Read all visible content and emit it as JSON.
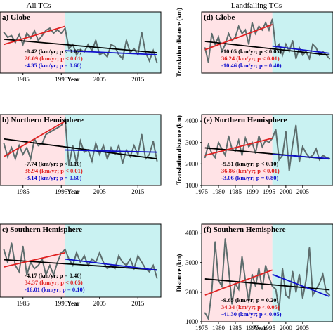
{
  "column_titles": [
    "All TCs",
    "Landfalling TCs"
  ],
  "colors": {
    "pre_region": "#ffe3e6",
    "post_region": "#c9f2f2",
    "series": "#5d6d6d",
    "trend_all": "#000000",
    "trend_pre": "#e02020",
    "trend_post": "#1010cc"
  },
  "chart_data": [
    {
      "type": "line",
      "panel": "a",
      "title": "a) Globe",
      "xlabel": "Year",
      "ylabel": "",
      "xlim": [
        1979,
        2021
      ],
      "ylim": [
        1900,
        3400
      ],
      "x_ticks": [
        1985,
        1995,
        2005,
        2015
      ],
      "y_ticks": [],
      "split_year": 1996,
      "x": [
        1980,
        1981,
        1982,
        1983,
        1984,
        1985,
        1986,
        1987,
        1988,
        1989,
        1990,
        1991,
        1992,
        1993,
        1994,
        1995,
        1996,
        1997,
        1998,
        1999,
        2000,
        2001,
        2002,
        2003,
        2004,
        2005,
        2006,
        2007,
        2008,
        2009,
        2010,
        2011,
        2012,
        2013,
        2014,
        2015,
        2016,
        2017,
        2018,
        2019,
        2020
      ],
      "values": [
        2900,
        2780,
        2820,
        2650,
        2850,
        2600,
        2880,
        2750,
        2940,
        2700,
        2820,
        2950,
        3000,
        2880,
        2960,
        2880,
        3000,
        2500,
        2600,
        2350,
        2480,
        2420,
        2600,
        2450,
        2700,
        2350,
        2400,
        2300,
        2600,
        2550,
        2350,
        2250,
        2700,
        2400,
        2500,
        2350,
        2900,
        2400,
        2200,
        2450,
        2150
      ],
      "trend_all": {
        "x": [
          1980,
          2020
        ],
        "y": [
          2730,
          2400
        ]
      },
      "trend_pre": {
        "x": [
          1980,
          1996
        ],
        "y": [
          2600,
          3050
        ]
      },
      "trend_post": {
        "x": [
          1996,
          2020
        ],
        "y": [
          2450,
          2350
        ]
      },
      "annotations": [
        {
          "text": "-8.42 (km/yr; p < 0.05)",
          "color": "#000000"
        },
        {
          "text": "28.09 (km/yr; p < 0.01)",
          "color": "#e02020"
        },
        {
          "text": "-4.35 (km/yr; p = 0.60)",
          "color": "#1010cc"
        }
      ]
    },
    {
      "type": "line",
      "panel": "b",
      "title": "b) Northern Hemisphere",
      "xlabel": "Year",
      "ylabel": "",
      "xlim": [
        1979,
        2021
      ],
      "ylim": [
        1800,
        3400
      ],
      "x_ticks": [
        1985,
        1995,
        2005,
        2015
      ],
      "y_ticks": [],
      "split_year": 1996,
      "x": [
        1980,
        1981,
        1982,
        1983,
        1984,
        1985,
        1986,
        1987,
        1988,
        1989,
        1990,
        1991,
        1992,
        1993,
        1994,
        1995,
        1996,
        1997,
        1998,
        1999,
        2000,
        2001,
        2002,
        2003,
        2004,
        2005,
        2006,
        2007,
        2008,
        2009,
        2010,
        2011,
        2012,
        2013,
        2014,
        2015,
        2016,
        2017,
        2018,
        2019,
        2020
      ],
      "values": [
        2750,
        2450,
        2650,
        2400,
        2700,
        2500,
        2650,
        2400,
        2850,
        2700,
        2750,
        2950,
        3000,
        3050,
        3100,
        3150,
        3300,
        2250,
        2700,
        2300,
        2800,
        2550,
        2600,
        2350,
        2750,
        2500,
        2700,
        2400,
        2650,
        2500,
        2700,
        2300,
        2600,
        2450,
        2700,
        2500,
        2950,
        2400,
        2500,
        2800,
        2350
      ],
      "trend_all": {
        "x": [
          1980,
          2020
        ],
        "y": [
          2850,
          2400
        ]
      },
      "trend_pre": {
        "x": [
          1980,
          1996
        ],
        "y": [
          2450,
          3250
        ]
      },
      "trend_post": {
        "x": [
          1996,
          2020
        ],
        "y": [
          2600,
          2550
        ]
      },
      "annotations": [
        {
          "text": "-7.74 (km/yr; p < 0.10)",
          "color": "#000000"
        },
        {
          "text": "38.94 (km/yr; p < 0.01)",
          "color": "#e02020"
        },
        {
          "text": "-3.14 (km/yr; p = 0.60)",
          "color": "#1010cc"
        }
      ]
    },
    {
      "type": "line",
      "panel": "c",
      "title": "c) Southern Hemisphere",
      "xlabel": "Year",
      "ylabel": "",
      "xlim": [
        1979,
        2021
      ],
      "ylim": [
        1500,
        3800
      ],
      "x_ticks": [
        1985,
        1995,
        2005,
        2015
      ],
      "y_ticks": [],
      "split_year": 1996,
      "x": [
        1980,
        1981,
        1982,
        1983,
        1984,
        1985,
        1986,
        1987,
        1988,
        1989,
        1990,
        1991,
        1992,
        1993,
        1994,
        1995,
        1996,
        1997,
        1998,
        1999,
        2000,
        2001,
        2002,
        2003,
        2004,
        2005,
        2006,
        2007,
        2008,
        2009,
        2010,
        2011,
        2012,
        2013,
        2014,
        2015,
        2016,
        2017,
        2018,
        2019,
        2020
      ],
      "values": [
        3000,
        2600,
        3200,
        2500,
        2300,
        3100,
        2200,
        2600,
        2400,
        2500,
        2700,
        2200,
        2500,
        2200,
        2600,
        2900,
        3000,
        2700,
        2500,
        2900,
        2600,
        2800,
        2500,
        2700,
        2600,
        2900,
        2600,
        2400,
        2500,
        2400,
        2800,
        2600,
        2500,
        2700,
        2400,
        2800,
        2600,
        2400,
        2300,
        2500,
        2100
      ],
      "trend_all": {
        "x": [
          1980,
          2020
        ],
        "y": [
          2680,
          2360
        ]
      },
      "trend_pre": {
        "x": [
          1980,
          1996
        ],
        "y": [
          2450,
          2900
        ]
      },
      "trend_post": {
        "x": [
          1996,
          2020
        ],
        "y": [
          2700,
          2350
        ]
      },
      "annotations": [
        {
          "text": "-4.17 (km/yr; p = 0.40)",
          "color": "#000000"
        },
        {
          "text": "34.37 (km/yr; p < 0.05)",
          "color": "#e02020"
        },
        {
          "text": "-16.01 (km/yr; p = 0.10)",
          "color": "#1010cc"
        }
      ]
    },
    {
      "type": "line",
      "panel": "d",
      "title": "(d) Globe",
      "xlabel": "",
      "ylabel": "Translation distance (km)",
      "xlim": [
        1975,
        2014
      ],
      "ylim": [
        1800,
        3500
      ],
      "x_ticks": [],
      "y_ticks": [],
      "split_year": 1996,
      "x": [
        1976,
        1977,
        1978,
        1979,
        1980,
        1981,
        1982,
        1983,
        1984,
        1985,
        1986,
        1987,
        1988,
        1989,
        1990,
        1991,
        1992,
        1993,
        1994,
        1995,
        1996,
        1997,
        1998,
        1999,
        2000,
        2001,
        2002,
        2003,
        2004,
        2005,
        2006,
        2007,
        2008,
        2009,
        2010,
        2011,
        2012,
        2013
      ],
      "values": [
        2500,
        2100,
        2900,
        2600,
        2800,
        2400,
        2600,
        2900,
        2700,
        2800,
        3100,
        2900,
        3000,
        2600,
        3200,
        2900,
        3100,
        3000,
        3200,
        3000,
        3300,
        2500,
        2600,
        2300,
        2600,
        2400,
        2700,
        2200,
        2500,
        2300,
        2400,
        2200,
        2600,
        2500,
        2300,
        2400,
        2300,
        2200
      ],
      "trend_all": {
        "x": [
          1976,
          2013
        ],
        "y": [
          2680,
          2300
        ]
      },
      "trend_pre": {
        "x": [
          1976,
          1996
        ],
        "y": [
          2450,
          3150
        ]
      },
      "trend_post": {
        "x": [
          1996,
          2013
        ],
        "y": [
          2550,
          2350
        ]
      },
      "annotations": [
        {
          "text": "-10.05 (km/yr; p < 0.05)",
          "color": "#000000"
        },
        {
          "text": "36.24 (km/yr; p < 0.01)",
          "color": "#e02020"
        },
        {
          "text": "-10.46 (km/yr; p = 0.40)",
          "color": "#1010cc"
        }
      ]
    },
    {
      "type": "line",
      "panel": "e",
      "title": "(e) Northern Hemisphere",
      "xlabel": "",
      "ylabel": "Translation distance (km)",
      "xlim": [
        1975,
        2014
      ],
      "ylim": [
        1000,
        4300
      ],
      "x_ticks": [
        1975,
        1980,
        1985,
        1990,
        1995,
        2000,
        2005
      ],
      "y_ticks": [
        1000,
        2000,
        3000,
        4000
      ],
      "split_year": 1996,
      "x": [
        1976,
        1977,
        1978,
        1979,
        1980,
        1981,
        1982,
        1983,
        1984,
        1985,
        1986,
        1987,
        1988,
        1989,
        1990,
        1991,
        1992,
        1993,
        1994,
        1995,
        1996,
        1997,
        1998,
        1999,
        2000,
        2001,
        2002,
        2003,
        2004,
        2005,
        2006,
        2007,
        2008,
        2009,
        2010,
        2011,
        2012,
        2013
      ],
      "values": [
        2300,
        2900,
        2500,
        2300,
        3000,
        2700,
        2400,
        3300,
        2700,
        2600,
        3100,
        2400,
        3200,
        2800,
        3000,
        2500,
        3300,
        2800,
        3100,
        3000,
        3200,
        3600,
        2200,
        2400,
        3500,
        1700,
        2900,
        3800,
        2100,
        2800,
        2500,
        2300,
        2400,
        2700,
        2200,
        2400,
        2300,
        2250
      ],
      "trend_all": {
        "x": [
          1976,
          2013
        ],
        "y": [
          2750,
          2230
        ]
      },
      "trend_pre": {
        "x": [
          1976,
          1996
        ],
        "y": [
          2400,
          3200
        ]
      },
      "trend_post": {
        "x": [
          1996,
          2013
        ],
        "y": [
          2450,
          2250
        ]
      },
      "annotations": [
        {
          "text": "-9.51 (km/yr; p < 0.10)",
          "color": "#000000"
        },
        {
          "text": "36.86 (km/yr; p < 0.01)",
          "color": "#e02020"
        },
        {
          "text": "-3.06 (km/yr; p = 0.80)",
          "color": "#1010cc"
        }
      ]
    },
    {
      "type": "line",
      "panel": "f",
      "title": "(f) Southern Hemisphere",
      "xlabel": "Year",
      "ylabel": "Distance (km)",
      "xlim": [
        1975,
        2014
      ],
      "ylim": [
        1000,
        4300
      ],
      "x_ticks": [
        1975,
        1980,
        1985,
        1990,
        1995,
        2000,
        2005
      ],
      "y_ticks": [
        1000,
        2000,
        3000,
        4000
      ],
      "split_year": 1996,
      "x": [
        1976,
        1977,
        1978,
        1979,
        1980,
        1981,
        1982,
        1983,
        1984,
        1985,
        1986,
        1987,
        1988,
        1989,
        1990,
        1991,
        1992,
        1993,
        1994,
        1995,
        1996,
        1997,
        1998,
        1999,
        2000,
        2001,
        2002,
        2003,
        2004,
        2005,
        2006,
        2007,
        2008,
        2009,
        2010,
        2011,
        2012,
        2013
      ],
      "values": [
        1300,
        1100,
        2000,
        3700,
        2400,
        2200,
        3800,
        2800,
        1600,
        2300,
        2100,
        3200,
        2400,
        1700,
        2600,
        2200,
        2800,
        2100,
        2900,
        2500,
        2200,
        2100,
        1400,
        2800,
        1900,
        1800,
        2700,
        2000,
        2600,
        1800,
        2400,
        3500,
        1900,
        2100,
        2300,
        2600,
        2000,
        1900
      ],
      "trend_all": {
        "x": [
          1976,
          2013
        ],
        "y": [
          2450,
          2080
        ]
      },
      "trend_pre": {
        "x": [
          1976,
          1996
        ],
        "y": [
          1900,
          2750
        ]
      },
      "trend_post": {
        "x": [
          1996,
          2013
        ],
        "y": [
          2600,
          1850
        ]
      },
      "annotations": [
        {
          "text": "-9.65 (km/yr; p = 0.20)",
          "color": "#000000"
        },
        {
          "text": "34.34 (km/yr; p < 0.05)",
          "color": "#e02020"
        },
        {
          "text": "-41.30 (km/yr; p < 0.05)",
          "color": "#1010cc"
        }
      ]
    }
  ]
}
